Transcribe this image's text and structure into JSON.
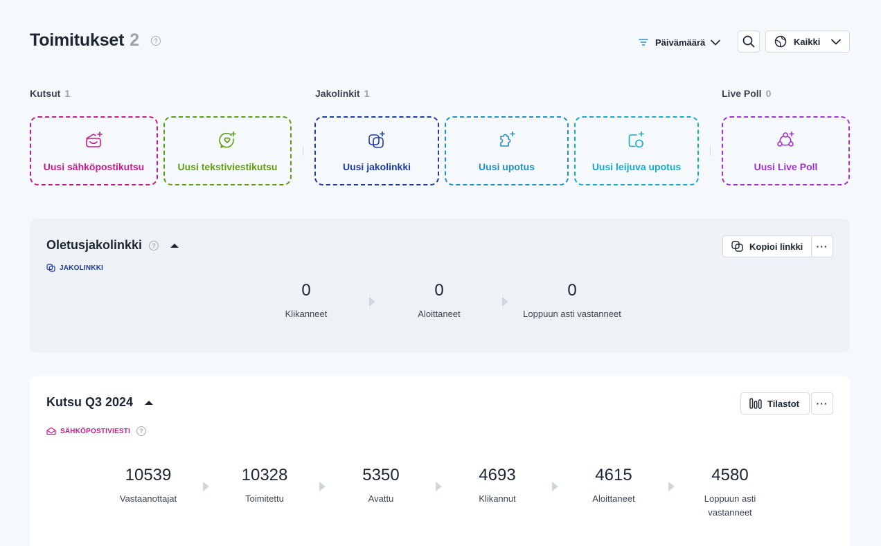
{
  "header": {
    "title": "Toimitukset",
    "count": "2",
    "date_filter_label": "Päivämäärä",
    "scope_select_label": "Kaikki"
  },
  "sections": {
    "invites": {
      "label": "Kutsut",
      "count": "1"
    },
    "share_links": {
      "label": "Jakolinkit",
      "count": "1"
    },
    "live_poll": {
      "label": "Live Poll",
      "count": "0"
    }
  },
  "cards": {
    "email_invite": "Uusi sähköpostikutsu",
    "sms_invite": "Uusi tekstiviestikutsu",
    "share_link": "Uusi jakolinkki",
    "embed": "Uusi upotus",
    "floating_embed": "Uusi leijuva upotus",
    "live_poll": "Uusi Live Poll"
  },
  "colors": {
    "email": "#c8198a",
    "sms": "#5d9e10",
    "share": "#1c3aa9",
    "embed": "#1e8fc7",
    "floating": "#14a9cf",
    "poll": "#a42fd6"
  },
  "default_link_panel": {
    "title": "Oletusjakolinkki",
    "tag": "JAKOLINKKI",
    "copy_button": "Kopioi linkki",
    "more_label": "···",
    "stats": [
      {
        "value": "0",
        "label": "Klikanneet"
      },
      {
        "value": "0",
        "label": "Aloittaneet"
      },
      {
        "value": "0",
        "label": "Loppuun asti vastanneet"
      }
    ]
  },
  "invite_panel": {
    "title": "Kutsu Q3 2024",
    "tag": "SÄHKÖPOSTIVIESTI",
    "stats_button": "Tilastot",
    "more_label": "···",
    "stats": [
      {
        "value": "10539",
        "label": "Vastaanottajat"
      },
      {
        "value": "10328",
        "label": "Toimitettu"
      },
      {
        "value": "5350",
        "label": "Avattu"
      },
      {
        "value": "4693",
        "label": "Klikannut"
      },
      {
        "value": "4615",
        "label": "Aloittaneet"
      },
      {
        "value": "4580",
        "label": "Loppuun asti vastanneet"
      }
    ]
  },
  "icons": {
    "help": "question-circle-icon",
    "filter": "filter-lines-icon",
    "search": "search-icon",
    "globe": "globe-icon",
    "chevron": "chevron-down-icon"
  }
}
